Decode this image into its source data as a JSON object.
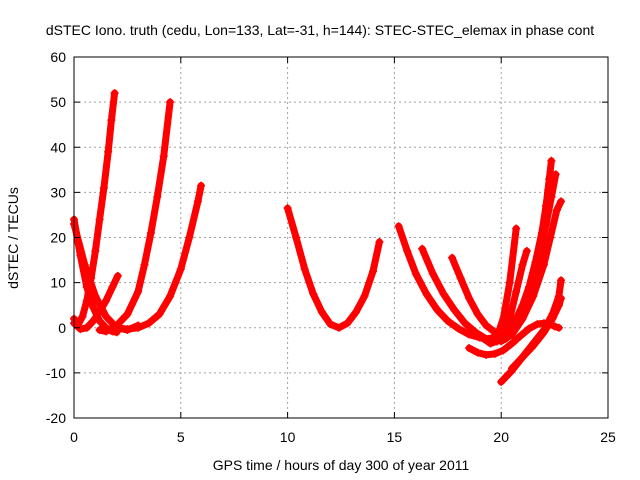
{
  "chart_data": {
    "type": "scatter",
    "title": "dSTEC Iono. truth (cedu, Lon=133, Lat=-31, h=144): STEC-STEC_elemax in phase cont",
    "xlabel": "GPS time / hours of day 300 of year 2011",
    "ylabel": "dSTEC  / TECUs",
    "xlim": [
      0,
      25
    ],
    "ylim": [
      -20,
      60
    ],
    "xticks": [
      0,
      5,
      10,
      15,
      20,
      25
    ],
    "yticks": [
      -20,
      -10,
      0,
      10,
      20,
      30,
      40,
      50,
      60
    ],
    "grid": true,
    "marker": "+",
    "color": "#ff0000",
    "series": [
      {
        "x": [
          0.0,
          0.3,
          0.6,
          0.9,
          1.2,
          1.5,
          1.8,
          2.0
        ],
        "y": [
          24.0,
          16.0,
          9.0,
          4.5,
          1.5,
          0.0,
          -0.8,
          -1.0
        ]
      },
      {
        "x": [
          0.0,
          0.3,
          0.6,
          0.9,
          1.2,
          1.5,
          1.8,
          2.05
        ],
        "y": [
          1.0,
          -0.3,
          0.0,
          1.5,
          3.5,
          6.0,
          9.0,
          11.5
        ]
      },
      {
        "x": [
          0.0,
          0.2,
          0.4,
          0.6,
          0.8,
          1.0,
          1.2,
          1.4,
          1.6,
          1.75,
          1.9
        ],
        "y": [
          2.0,
          0.8,
          2.5,
          6.0,
          11.0,
          17.0,
          24.0,
          31.0,
          39.0,
          46.0,
          52.0
        ]
      },
      {
        "x": [
          0.0,
          0.5,
          1.0,
          1.5,
          2.0,
          2.5,
          3.0
        ],
        "y": [
          23.0,
          14.0,
          7.0,
          2.5,
          0.0,
          -0.5,
          0.5
        ]
      },
      {
        "x": [
          1.2,
          1.5,
          2.0,
          2.5,
          3.0,
          3.3,
          3.6,
          3.9,
          4.2,
          4.5
        ],
        "y": [
          -0.5,
          -0.8,
          0.5,
          3.0,
          8.0,
          14.0,
          21.0,
          29.0,
          38.0,
          50.0
        ]
      },
      {
        "x": [
          2.0,
          2.5,
          3.0,
          3.5,
          4.0,
          4.5,
          5.0,
          5.4,
          5.8,
          5.95
        ],
        "y": [
          0.0,
          -0.3,
          0.0,
          1.0,
          3.0,
          7.0,
          13.0,
          20.0,
          28.0,
          31.5
        ]
      },
      {
        "x": [
          10.0,
          10.4,
          10.8,
          11.2,
          11.6,
          12.0,
          12.4,
          12.8,
          13.2,
          13.6,
          14.0,
          14.3
        ],
        "y": [
          26.5,
          20.0,
          13.0,
          7.5,
          3.5,
          0.8,
          0.0,
          1.0,
          3.5,
          7.0,
          12.5,
          19.0
        ]
      },
      {
        "x": [
          15.2,
          15.6,
          16.0,
          16.5,
          17.0,
          17.5,
          18.0,
          18.5,
          19.0,
          19.4,
          19.7
        ],
        "y": [
          22.5,
          17.0,
          12.0,
          7.5,
          4.0,
          1.5,
          -0.2,
          -1.5,
          -2.2,
          -2.5,
          -2.0
        ]
      },
      {
        "x": [
          16.3,
          16.8,
          17.3,
          17.8,
          18.3,
          18.8,
          19.3,
          19.8,
          20.2
        ],
        "y": [
          17.5,
          12.0,
          7.5,
          4.0,
          1.0,
          -1.0,
          -2.5,
          -3.0,
          -2.5
        ]
      },
      {
        "x": [
          17.7,
          18.1,
          18.5,
          18.9,
          19.3,
          19.7,
          20.0,
          20.3
        ],
        "y": [
          15.5,
          11.0,
          6.5,
          3.0,
          0.5,
          -1.0,
          -1.5,
          -1.0
        ]
      },
      {
        "x": [
          18.5,
          18.9,
          19.3,
          19.7,
          20.1,
          20.5,
          20.9,
          21.3,
          21.7,
          22.0,
          22.3,
          22.5,
          22.7
        ],
        "y": [
          -4.5,
          -5.5,
          -6.0,
          -5.8,
          -5.0,
          -3.5,
          -1.8,
          -0.2,
          0.8,
          1.0,
          0.8,
          0.3,
          0.0
        ]
      },
      {
        "x": [
          18.9,
          19.2,
          19.5,
          19.8,
          20.1,
          20.4,
          20.7
        ],
        "y": [
          -1.5,
          -2.5,
          -3.0,
          -2.0,
          2.0,
          10.0,
          22.0
        ]
      },
      {
        "x": [
          19.2,
          19.5,
          19.8,
          20.1,
          20.4,
          20.7,
          21.0,
          21.2
        ],
        "y": [
          -2.5,
          -3.5,
          -3.0,
          -1.5,
          2.0,
          8.0,
          14.0,
          17.0
        ]
      },
      {
        "x": [
          19.5,
          19.8,
          20.1,
          20.4,
          20.7,
          21.0,
          21.3,
          21.6,
          21.9,
          22.1,
          22.2
        ],
        "y": [
          -3.0,
          -2.5,
          -1.5,
          0.0,
          2.0,
          5.0,
          9.0,
          14.5,
          21.0,
          27.0,
          30.5
        ]
      },
      {
        "x": [
          20.0,
          20.5,
          21.0,
          21.5,
          22.0,
          22.3,
          22.6,
          22.8
        ],
        "y": [
          -3.0,
          -1.5,
          2.0,
          7.0,
          14.0,
          20.0,
          26.0,
          28.0
        ]
      },
      {
        "x": [
          20.3,
          20.8,
          21.2,
          21.6,
          21.9,
          22.1,
          22.25,
          22.35
        ],
        "y": [
          -2.0,
          1.0,
          6.0,
          13.0,
          20.0,
          27.0,
          33.0,
          37.0
        ]
      },
      {
        "x": [
          20.6,
          21.0,
          21.4,
          21.8,
          22.1,
          22.35,
          22.55
        ],
        "y": [
          0.0,
          3.5,
          9.0,
          16.0,
          23.0,
          29.0,
          34.0
        ]
      },
      {
        "x": [
          20.0,
          20.5,
          21.0,
          21.5,
          22.0,
          22.4,
          22.7,
          22.8
        ],
        "y": [
          -12.0,
          -9.5,
          -6.5,
          -3.5,
          -0.5,
          3.0,
          7.0,
          10.5
        ]
      },
      {
        "x": [
          20.5,
          21.0,
          21.5,
          22.0,
          22.4,
          22.7,
          22.8
        ],
        "y": [
          -9.0,
          -6.5,
          -4.0,
          -1.0,
          2.0,
          5.0,
          6.5
        ]
      }
    ]
  }
}
